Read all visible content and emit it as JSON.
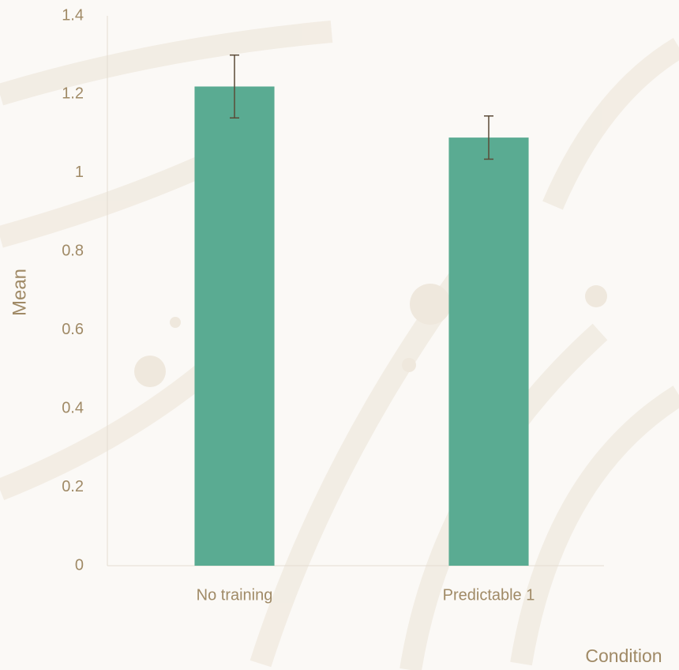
{
  "chart_data": {
    "type": "bar",
    "categories": [
      "No training",
      "Predictable 1"
    ],
    "values": [
      1.22,
      1.09
    ],
    "errors": [
      0.08,
      0.055
    ],
    "color": "#5aab92",
    "error_color": "#5b4b37",
    "ylim": [
      0,
      1.4
    ],
    "yticks": [
      0,
      0.2,
      0.4,
      0.6,
      0.8,
      1,
      1.2,
      1.4
    ],
    "y_label": "Mean",
    "x_label": "Condition",
    "grid": false
  }
}
